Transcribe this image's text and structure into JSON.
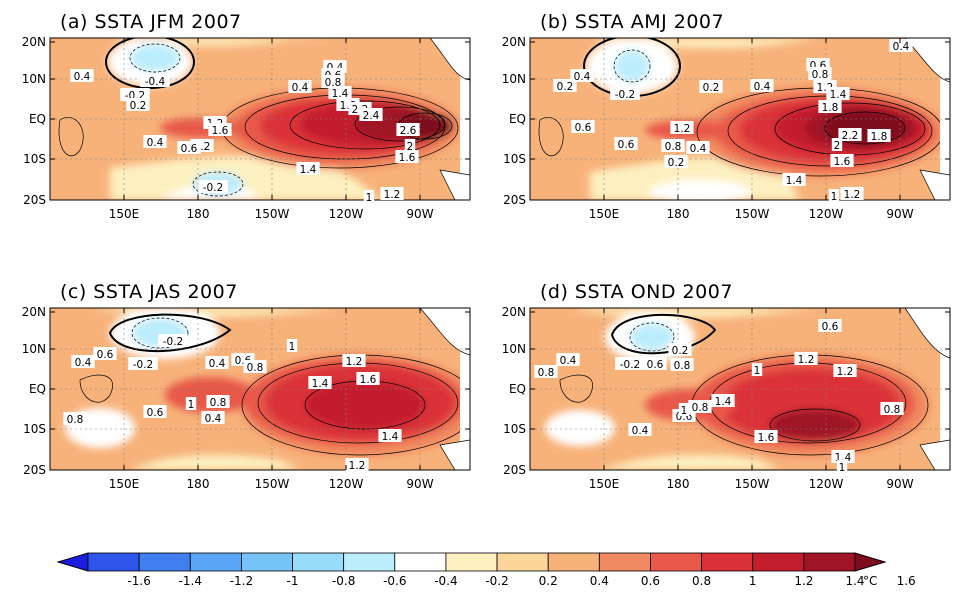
{
  "panels": [
    {
      "id": "a",
      "title": "(a) SSTA JFM 2007",
      "lat_ticks": [
        "20N",
        "10N",
        "EQ",
        "10S",
        "20S"
      ],
      "lon_ticks": [
        "150E",
        "180",
        "150W",
        "120W",
        "90W"
      ],
      "contour_labels": [
        "0.4",
        "-0.4",
        "-0.2",
        "0.2",
        "0.4",
        "0.4",
        "0.6",
        "0.8",
        "1.4",
        "1.8",
        "2.2",
        "2.4",
        "1.2",
        "1.6",
        "0.2",
        "0.4",
        "0.6",
        "2.6",
        "2",
        "1.6",
        "1.4",
        "-0.2",
        "1",
        "1.2"
      ]
    },
    {
      "id": "b",
      "title": "(b) SSTA AMJ 2007",
      "lat_ticks": [
        "20N",
        "10N",
        "EQ",
        "10S",
        "20S"
      ],
      "lon_ticks": [
        "150E",
        "180",
        "150W",
        "120W",
        "90W"
      ],
      "contour_labels": [
        "0.4",
        "0.2",
        "0.4",
        "-0.2",
        "0.2",
        "0.4",
        "0.6",
        "0.8",
        "1.2",
        "1.4",
        "1.8",
        "0.6",
        "0.6",
        "1.2",
        "0.8",
        "0.4",
        "0.2",
        "2.2",
        "1.8",
        "2",
        "1.6",
        "1.4",
        "1",
        "1.2"
      ]
    },
    {
      "id": "c",
      "title": "(c) SSTA JAS 2007",
      "lat_ticks": [
        "20N",
        "10N",
        "EQ",
        "10S",
        "20S"
      ],
      "lon_ticks": [
        "150E",
        "180",
        "150W",
        "120W",
        "90W"
      ],
      "contour_labels": [
        "0.4",
        "0.6",
        "-0.2",
        "-0.2",
        "0.4",
        "0.6",
        "0.8",
        "1",
        "1.2",
        "1.6",
        "1.4",
        "1",
        "0.8",
        "0.4",
        "0.6",
        "0.8",
        "1.4",
        "1.2"
      ]
    },
    {
      "id": "d",
      "title": "(d) SSTA OND 2007",
      "lat_ticks": [
        "20N",
        "10N",
        "EQ",
        "10S",
        "20S"
      ],
      "lon_ticks": [
        "150E",
        "180",
        "150W",
        "120W",
        "90W"
      ],
      "contour_labels": [
        "0.6",
        "0.4",
        "0.8",
        "-0.2",
        "0.2",
        "0.6",
        "0.8",
        "1",
        "1.2",
        "1.2",
        "1.4",
        "0.6",
        "1",
        "0.8",
        "0.4",
        "1.6",
        "1.4",
        "1",
        "0.8"
      ]
    }
  ],
  "colorbar": {
    "unit": "°C",
    "tick_labels": [
      "-1.6",
      "-1.4",
      "-1.2",
      "-1",
      "-0.8",
      "-0.6",
      "-0.4",
      "-0.2",
      "0.2",
      "0.4",
      "0.6",
      "0.8",
      "1",
      "1.2",
      "1.4",
      "1.6"
    ],
    "colors": [
      "#1c1ce0",
      "#2d55ea",
      "#3f7ff0",
      "#5aa6f5",
      "#76c3f8",
      "#97dcfb",
      "#bcedfd",
      "#ffffff",
      "#fdf0c0",
      "#fbd59a",
      "#f7b27a",
      "#f18a60",
      "#e8594a",
      "#da3138",
      "#c21e2e",
      "#9f1426",
      "#7d0d1e"
    ]
  }
}
